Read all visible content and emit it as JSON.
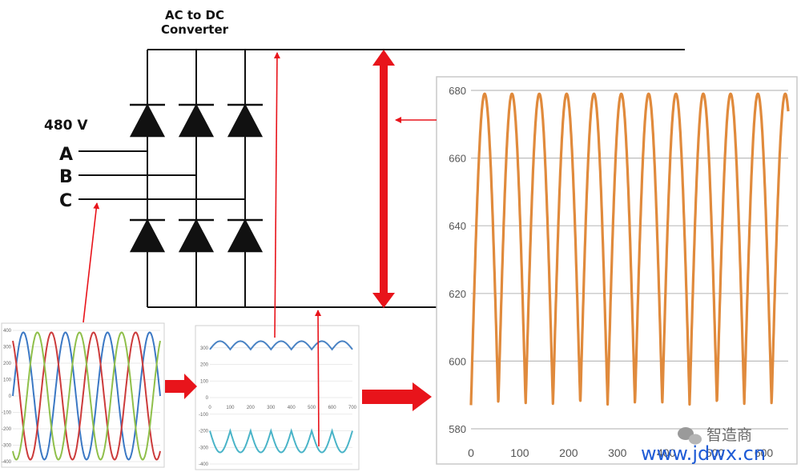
{
  "title_line1": "AC to DC",
  "title_line2": "Converter",
  "voltage_label": "480 V",
  "phases": [
    "A",
    "B",
    "C"
  ],
  "colors": {
    "wire": "#111111",
    "arrow": "#e8141b",
    "phase_a": "#3b78c4",
    "phase_b": "#cc3b3b",
    "phase_c": "#8fbf4a",
    "rectified_top": "#4a83c4",
    "rectified_bottom": "#4ab4c8",
    "dc_output": "#e08a3c"
  },
  "watermark": {
    "brand": "智造商",
    "url": "www.jdwx.cn"
  },
  "chart_data": [
    {
      "type": "line",
      "panel": "three-phase-input",
      "ylim": [
        -400,
        400
      ],
      "yticks": [
        "400",
        "300",
        "200",
        "100",
        "0",
        "-100",
        "-200",
        "-300",
        "-400"
      ],
      "series": [
        {
          "amplitude": 400,
          "phase_deg": 0,
          "cycles": 3.5
        },
        {
          "amplitude": 400,
          "phase_deg": 120,
          "cycles": 3.5
        },
        {
          "amplitude": 400,
          "phase_deg": 240,
          "cycles": 3.5
        }
      ]
    },
    {
      "type": "line",
      "panel": "rectified-rails",
      "xlim": [
        0,
        700
      ],
      "xticks": [
        "0",
        "100",
        "200",
        "300",
        "400",
        "500",
        "600",
        "700"
      ],
      "yticks": [
        "300",
        "200",
        "100",
        "0",
        "-100",
        "-200",
        "-300",
        "-400"
      ],
      "ylim": [
        -400,
        400
      ],
      "series": [
        {
          "rail": "positive",
          "peak": 340,
          "trough": 290,
          "ripples": 7
        },
        {
          "rail": "negative",
          "peak": -200,
          "trough": -330,
          "ripples": 7
        }
      ]
    },
    {
      "type": "line",
      "panel": "dc-output",
      "ylim": [
        580,
        680
      ],
      "yticks": [
        "680",
        "660",
        "640",
        "620",
        "600",
        "580"
      ],
      "xticks": [
        "0",
        "100",
        "200",
        "300",
        "400",
        "500",
        "600"
      ],
      "xlim": [
        0,
        650
      ],
      "series": [
        {
          "max": 679,
          "min": 587,
          "period": 56,
          "start_x": 0
        }
      ]
    }
  ]
}
